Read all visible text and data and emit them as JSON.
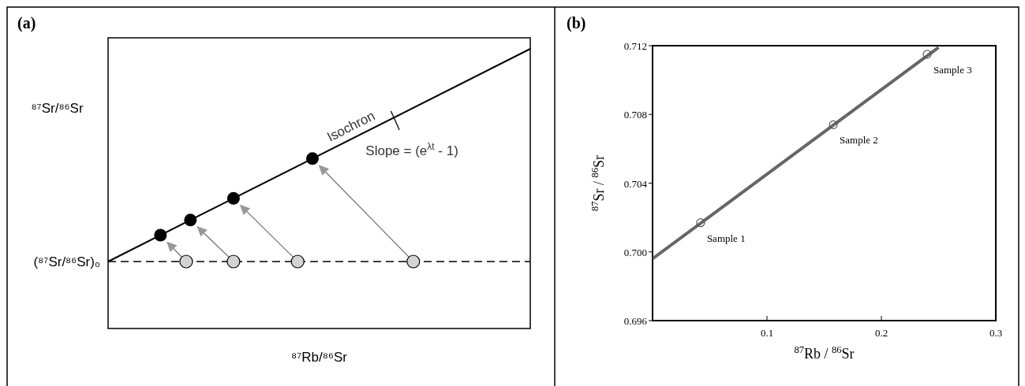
{
  "chart_data": [
    {
      "type": "other",
      "title": "(a)",
      "xlabel": "⁸⁷Rb/⁸⁶Sr",
      "ylabel": "⁸⁷Sr/⁸⁶Sr",
      "annotations": [
        "Isochron",
        "Slope = (e$^{λt}$ - 1)",
        "(⁸⁷Sr/⁸⁶Sr)₀"
      ]
    },
    {
      "type": "line",
      "title": "(b)",
      "xlabel": "$^{87}$Rb / $^{86}$Sr",
      "ylabel": "$^{87}$Sr / $^{86}$Sr",
      "xlim": [
        0,
        0.3
      ],
      "ylim": [
        0.696,
        0.712
      ],
      "xticks": [
        0.1,
        0.2,
        0.3
      ],
      "yticks": [
        {
          "value": 0.696,
          "label": "0.696"
        },
        {
          "value": 0.7,
          "label": "0.700"
        },
        {
          "value": 0.704,
          "label": "0.704"
        },
        {
          "value": 0.708,
          "label": "0.708"
        },
        {
          "value": 0.712,
          "label": "0.712"
        }
      ],
      "series": [
        {
          "type": "line",
          "color": "#666666",
          "x": [
            0,
            0.25
          ],
          "values": [
            0.6996,
            0.7119
          ]
        },
        {
          "type": "scatter",
          "color": "#555555",
          "marker": "circle",
          "x": [
            0.042,
            0.158,
            0.24
          ],
          "values": [
            0.7017,
            0.7074,
            0.7115
          ]
        }
      ],
      "annotations": [
        {
          "text": "Sample 1",
          "x": 0.042,
          "y": 0.7017
        },
        {
          "text": "Sample 2",
          "x": 0.158,
          "y": 0.7074
        },
        {
          "text": "Sample 3",
          "x": 0.24,
          "y": 0.7115
        }
      ]
    }
  ]
}
